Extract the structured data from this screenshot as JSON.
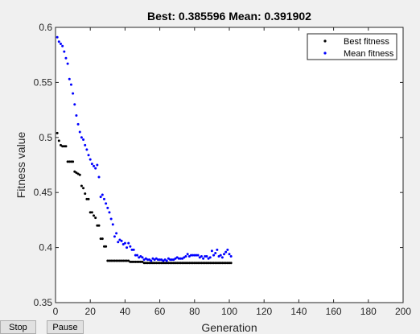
{
  "window": {
    "stop_label": "Stop",
    "pause_label": "Pause"
  },
  "chart_data": {
    "type": "scatter",
    "title": "Best: 0.385596 Mean: 0.391902",
    "xlabel": "Generation",
    "ylabel": "Fitness value",
    "xlim": [
      0,
      200
    ],
    "ylim": [
      0.35,
      0.6
    ],
    "xticks": [
      0,
      20,
      40,
      60,
      80,
      100,
      120,
      140,
      160,
      180,
      200
    ],
    "yticks": [
      0.35,
      0.4,
      0.45,
      0.5,
      0.55,
      0.6
    ],
    "xtick_labels": [
      "0",
      "20",
      "40",
      "60",
      "80",
      "100",
      "120",
      "140",
      "160",
      "180",
      "200"
    ],
    "ytick_labels": [
      "0.35",
      "0.4",
      "0.45",
      "0.5",
      "0.55",
      "0.6"
    ],
    "grid": false,
    "legend_position": "top-right",
    "series": [
      {
        "name": "Best fitness",
        "color": "#000000",
        "x": [
          1,
          2,
          3,
          4,
          5,
          6,
          7,
          8,
          9,
          10,
          11,
          12,
          13,
          14,
          15,
          16,
          17,
          18,
          19,
          20,
          21,
          22,
          23,
          24,
          25,
          26,
          27,
          28,
          29,
          30,
          31,
          32,
          33,
          34,
          35,
          36,
          37,
          38,
          39,
          40,
          41,
          42,
          43,
          44,
          45,
          46,
          47,
          48,
          49,
          50,
          51,
          52,
          53,
          54,
          55,
          56,
          57,
          58,
          59,
          60,
          61,
          62,
          63,
          64,
          65,
          66,
          67,
          68,
          69,
          70,
          71,
          72,
          73,
          74,
          75,
          76,
          77,
          78,
          79,
          80,
          81,
          82,
          83,
          84,
          85,
          86,
          87,
          88,
          89,
          90,
          91,
          92,
          93,
          94,
          95,
          96,
          97,
          98,
          99,
          100,
          101
        ],
        "y": [
          0.504,
          0.497,
          0.493,
          0.492,
          0.492,
          0.492,
          0.478,
          0.478,
          0.478,
          0.478,
          0.469,
          0.468,
          0.467,
          0.466,
          0.456,
          0.454,
          0.449,
          0.444,
          0.444,
          0.432,
          0.432,
          0.429,
          0.427,
          0.42,
          0.42,
          0.408,
          0.408,
          0.401,
          0.401,
          0.388,
          0.388,
          0.388,
          0.388,
          0.388,
          0.388,
          0.388,
          0.388,
          0.388,
          0.388,
          0.388,
          0.388,
          0.388,
          0.387,
          0.387,
          0.387,
          0.387,
          0.387,
          0.387,
          0.387,
          0.387,
          0.386,
          0.386,
          0.386,
          0.386,
          0.386,
          0.386,
          0.386,
          0.386,
          0.386,
          0.386,
          0.386,
          0.386,
          0.386,
          0.386,
          0.386,
          0.386,
          0.386,
          0.386,
          0.386,
          0.386,
          0.386,
          0.386,
          0.386,
          0.386,
          0.386,
          0.386,
          0.386,
          0.386,
          0.386,
          0.386,
          0.386,
          0.386,
          0.386,
          0.386,
          0.386,
          0.386,
          0.386,
          0.386,
          0.386,
          0.386,
          0.386,
          0.386,
          0.386,
          0.386,
          0.386,
          0.386,
          0.386,
          0.386,
          0.386,
          0.386,
          0.386
        ]
      },
      {
        "name": "Mean fitness",
        "color": "#0000ff",
        "x": [
          1,
          2,
          3,
          4,
          5,
          6,
          7,
          8,
          9,
          10,
          11,
          12,
          13,
          14,
          15,
          16,
          17,
          18,
          19,
          20,
          21,
          22,
          23,
          24,
          25,
          26,
          27,
          28,
          29,
          30,
          31,
          32,
          33,
          34,
          35,
          36,
          37,
          38,
          39,
          40,
          41,
          42,
          43,
          44,
          45,
          46,
          47,
          48,
          49,
          50,
          51,
          52,
          53,
          54,
          55,
          56,
          57,
          58,
          59,
          60,
          61,
          62,
          63,
          64,
          65,
          66,
          67,
          68,
          69,
          70,
          71,
          72,
          73,
          74,
          75,
          76,
          77,
          78,
          79,
          80,
          81,
          82,
          83,
          84,
          85,
          86,
          87,
          88,
          89,
          90,
          91,
          92,
          93,
          94,
          95,
          96,
          97,
          98,
          99,
          100,
          101
        ],
        "y": [
          0.591,
          0.587,
          0.585,
          0.583,
          0.578,
          0.572,
          0.567,
          0.553,
          0.548,
          0.54,
          0.53,
          0.52,
          0.512,
          0.505,
          0.5,
          0.498,
          0.493,
          0.489,
          0.484,
          0.48,
          0.476,
          0.474,
          0.472,
          0.475,
          0.464,
          0.446,
          0.448,
          0.444,
          0.44,
          0.436,
          0.432,
          0.426,
          0.421,
          0.41,
          0.413,
          0.405,
          0.407,
          0.406,
          0.403,
          0.404,
          0.4,
          0.404,
          0.401,
          0.398,
          0.398,
          0.393,
          0.393,
          0.391,
          0.392,
          0.391,
          0.389,
          0.39,
          0.389,
          0.389,
          0.388,
          0.39,
          0.389,
          0.39,
          0.389,
          0.389,
          0.389,
          0.388,
          0.389,
          0.388,
          0.39,
          0.389,
          0.389,
          0.389,
          0.39,
          0.391,
          0.39,
          0.39,
          0.39,
          0.391,
          0.392,
          0.394,
          0.392,
          0.393,
          0.393,
          0.393,
          0.393,
          0.393,
          0.391,
          0.392,
          0.39,
          0.392,
          0.392,
          0.39,
          0.391,
          0.397,
          0.393,
          0.395,
          0.398,
          0.392,
          0.393,
          0.391,
          0.394,
          0.396,
          0.398,
          0.394,
          0.392
        ]
      }
    ]
  }
}
